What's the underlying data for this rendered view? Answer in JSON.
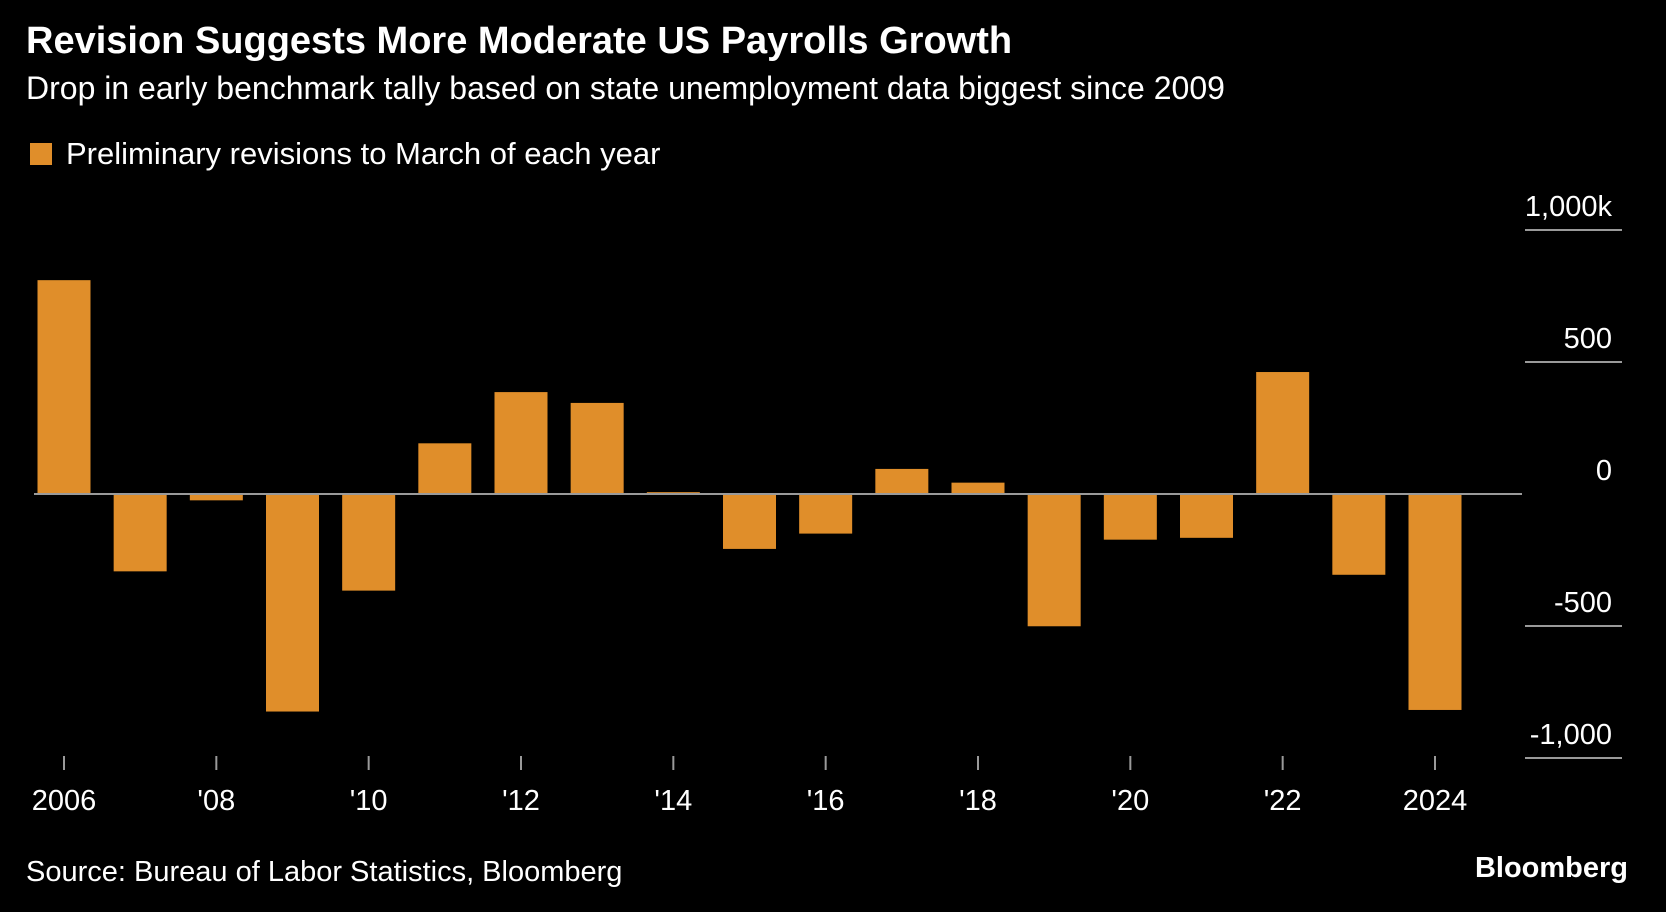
{
  "title": "Revision Suggests More Moderate US Payrolls Growth",
  "subtitle": "Drop in early benchmark tally based on state unemployment data biggest since 2009",
  "legend_label": "Preliminary revisions to March of each year",
  "source": "Source: Bureau of Labor Statistics, Bloomberg",
  "brand": "Bloomberg",
  "colors": {
    "background": "#000000",
    "bar": "#e08e2a",
    "text": "#ffffff",
    "axis": "#9a9a9a"
  },
  "chart_data": {
    "type": "bar",
    "title": "Revision Suggests More Moderate US Payrolls Growth",
    "subtitle": "Drop in early benchmark tally based on state unemployment data biggest since 2009",
    "categories": [
      "2006",
      "2007",
      "2008",
      "2009",
      "2010",
      "2011",
      "2012",
      "2013",
      "2014",
      "2015",
      "2016",
      "2017",
      "2018",
      "2019",
      "2020",
      "2021",
      "2022",
      "2023",
      "2024"
    ],
    "series": [
      {
        "name": "Preliminary revisions to March of each year",
        "values": [
          810,
          -293,
          -24,
          -824,
          -366,
          192,
          386,
          345,
          7,
          -208,
          -150,
          95,
          43,
          -501,
          -173,
          -166,
          462,
          -306,
          -818
        ]
      }
    ],
    "x_tick_labels": [
      "2006",
      "'08",
      "'10",
      "'12",
      "'14",
      "'16",
      "'18",
      "'20",
      "'22",
      "2024"
    ],
    "x_tick_years": [
      2006,
      2008,
      2010,
      2012,
      2014,
      2016,
      2018,
      2020,
      2022,
      2024
    ],
    "y_ticks": [
      1000,
      500,
      0,
      -500,
      -1000
    ],
    "y_tick_labels": [
      "1,000k",
      "500",
      "0",
      "-500",
      "-1,000"
    ],
    "ylim": [
      -1000,
      1000
    ],
    "xlabel": "",
    "ylabel": "",
    "y_axis_side": "right",
    "legend_position": "top-left",
    "grid": false
  }
}
